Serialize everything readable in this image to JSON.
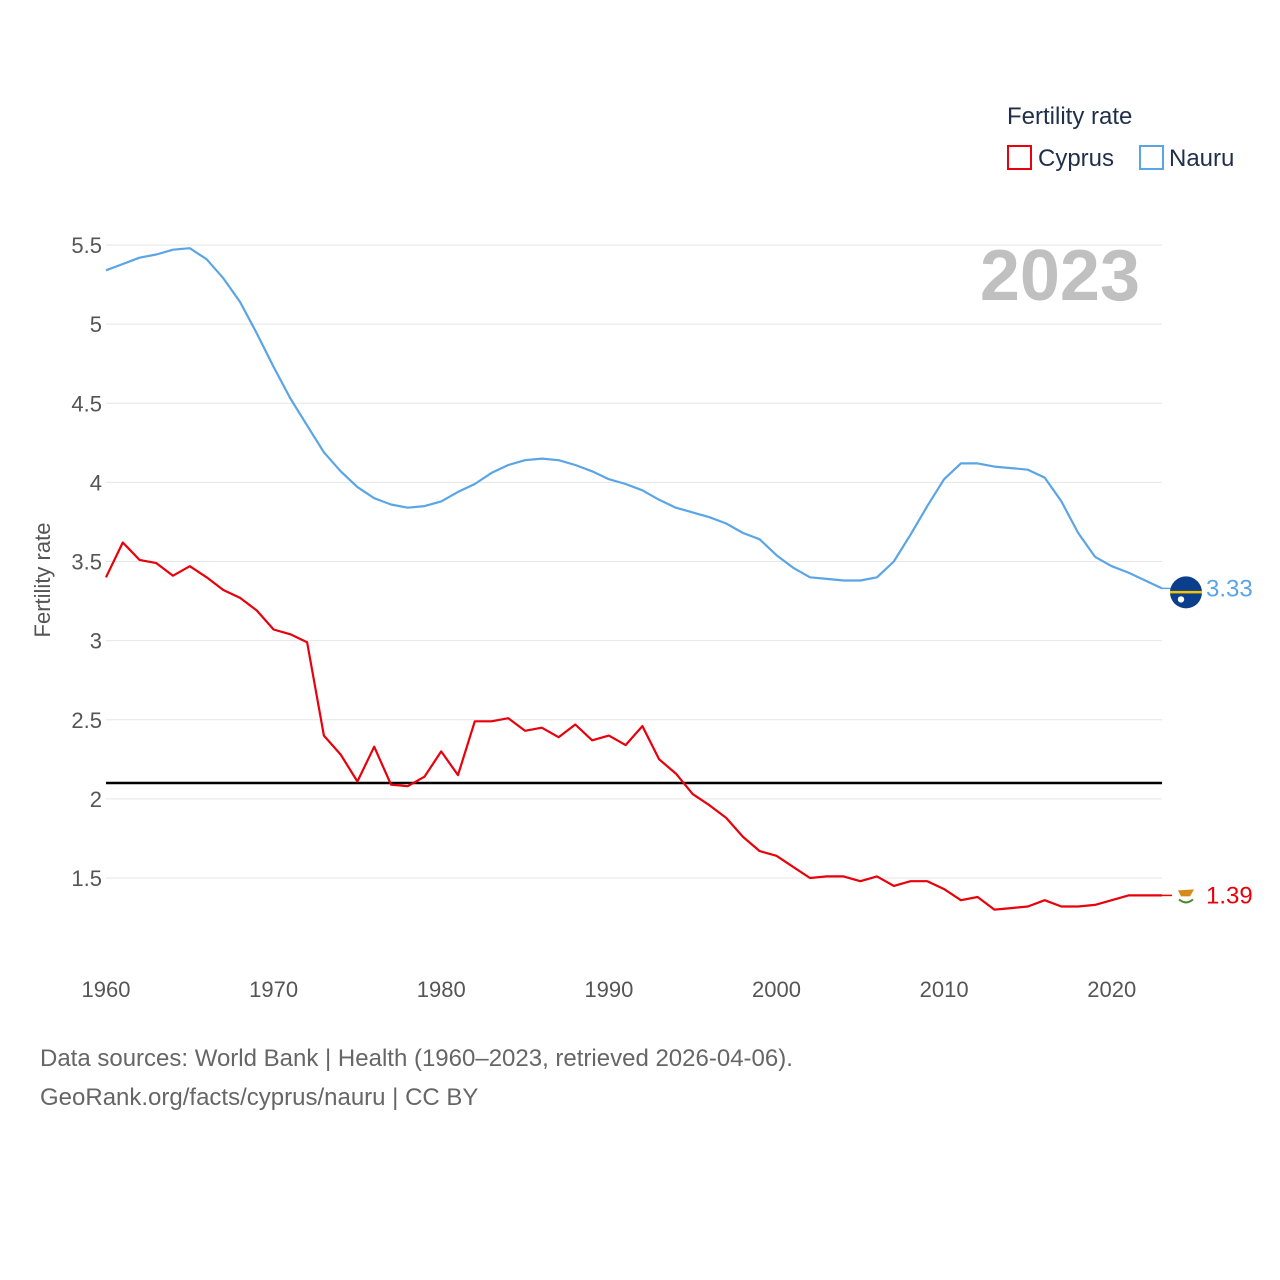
{
  "chart_data": {
    "type": "line",
    "title": "",
    "ylabel": "Fertility rate",
    "xlabel": "",
    "year_label": "2023",
    "legend": {
      "title": "Fertility rate",
      "placement": "top-right"
    },
    "x": [
      1960,
      1961,
      1962,
      1963,
      1964,
      1965,
      1966,
      1967,
      1968,
      1969,
      1970,
      1971,
      1972,
      1973,
      1974,
      1975,
      1976,
      1977,
      1978,
      1979,
      1980,
      1981,
      1982,
      1983,
      1984,
      1985,
      1986,
      1987,
      1988,
      1989,
      1990,
      1991,
      1992,
      1993,
      1994,
      1995,
      1996,
      1997,
      1998,
      1999,
      2000,
      2001,
      2002,
      2003,
      2004,
      2005,
      2006,
      2007,
      2008,
      2009,
      2010,
      2011,
      2012,
      2013,
      2014,
      2015,
      2016,
      2017,
      2018,
      2019,
      2020,
      2021,
      2022,
      2023
    ],
    "xlim": [
      1960,
      2023
    ],
    "ylim": [
      1.0,
      5.6
    ],
    "xticks": [
      1960,
      1970,
      1980,
      1990,
      2000,
      2010,
      2020
    ],
    "xtick_labels": [
      "1960",
      "1970",
      "1980",
      "1990",
      "2000",
      "2010",
      "2020"
    ],
    "yticks": [
      1.5,
      2,
      2.5,
      3,
      3.5,
      4,
      4.5,
      5,
      5.5
    ],
    "ytick_labels": [
      "1.5",
      "2",
      "2.5",
      "3",
      "3.5",
      "4",
      "4.5",
      "5",
      "5.5"
    ],
    "grid": true,
    "reference_line": {
      "y": 2.1,
      "color": "#000000"
    },
    "series": [
      {
        "name": "Cyprus",
        "color": "#e8000b",
        "end_label": "1.39",
        "flag_icon": "cyprus-flag-icon",
        "values": [
          3.4,
          3.62,
          3.51,
          3.49,
          3.41,
          3.47,
          3.4,
          3.32,
          3.27,
          3.19,
          3.07,
          3.04,
          2.99,
          2.4,
          2.28,
          2.11,
          2.33,
          2.09,
          2.08,
          2.14,
          2.3,
          2.15,
          2.49,
          2.49,
          2.51,
          2.43,
          2.45,
          2.39,
          2.47,
          2.37,
          2.4,
          2.34,
          2.46,
          2.25,
          2.16,
          2.03,
          1.96,
          1.88,
          1.76,
          1.67,
          1.64,
          1.57,
          1.5,
          1.51,
          1.51,
          1.48,
          1.51,
          1.45,
          1.48,
          1.48,
          1.43,
          1.36,
          1.38,
          1.3,
          1.31,
          1.32,
          1.36,
          1.32,
          1.32,
          1.33,
          1.36,
          1.39,
          1.39,
          1.39
        ]
      },
      {
        "name": "Nauru",
        "color": "#5aa5e6",
        "end_label": "3.33",
        "flag_icon": "nauru-flag-icon",
        "values": [
          5.34,
          5.38,
          5.42,
          5.44,
          5.47,
          5.48,
          5.41,
          5.29,
          5.14,
          4.94,
          4.73,
          4.53,
          4.36,
          4.19,
          4.07,
          3.97,
          3.9,
          3.86,
          3.84,
          3.85,
          3.88,
          3.94,
          3.99,
          4.06,
          4.11,
          4.14,
          4.15,
          4.14,
          4.11,
          4.07,
          4.02,
          3.99,
          3.95,
          3.89,
          3.84,
          3.81,
          3.78,
          3.74,
          3.68,
          3.64,
          3.54,
          3.46,
          3.4,
          3.39,
          3.38,
          3.38,
          3.4,
          3.5,
          3.67,
          3.85,
          4.02,
          4.12,
          4.12,
          4.1,
          4.09,
          4.08,
          4.03,
          3.88,
          3.68,
          3.53,
          3.47,
          3.43,
          3.38,
          3.33
        ]
      }
    ]
  },
  "footer": {
    "source_line": "Data sources: World Bank | Health (1960–2023, retrieved 2026-04-06).",
    "url_line": "GeoRank.org/facts/cyprus/nauru | CC BY"
  }
}
